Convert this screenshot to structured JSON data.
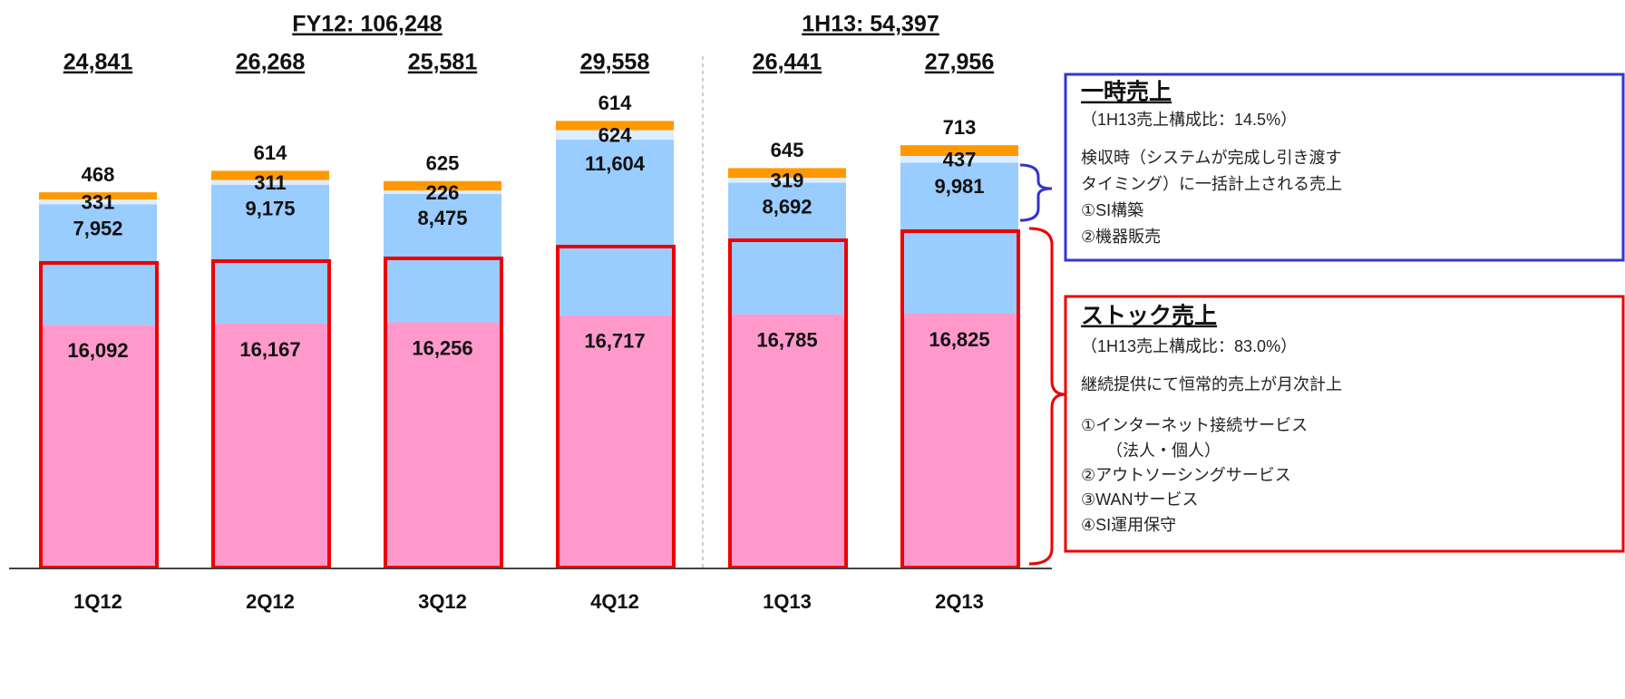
{
  "chart_data": {
    "type": "stacked_bar",
    "group_labels": [
      "FY12: 106,248",
      "1H13: 54,397"
    ],
    "categories": [
      "1Q12",
      "2Q12",
      "3Q12",
      "4Q12",
      "1Q13",
      "2Q13"
    ],
    "totals": [
      24841,
      26268,
      25581,
      29558,
      26441,
      27956
    ],
    "totals_labels": [
      "24,841",
      "26,268",
      "25,581",
      "29,558",
      "26,441",
      "27,956"
    ],
    "series": [
      {
        "color": "#ff99cc",
        "values": [
          16092,
          16167,
          16256,
          16717,
          16785,
          16825
        ],
        "value_labels": [
          "16,092",
          "16,167",
          "16,256",
          "16,717",
          "16,785",
          "16,825"
        ]
      },
      {
        "color": "#99ccff",
        "values": [
          7952,
          9175,
          8475,
          11604,
          8692,
          9981
        ],
        "value_labels": [
          "7,952",
          "9,175",
          "8,475",
          "11,604",
          "8,692",
          "9,981"
        ]
      },
      {
        "color": "#ddeeff",
        "values": [
          331,
          311,
          226,
          624,
          319,
          437
        ]
      },
      {
        "color": "#ff9900",
        "values": [
          468,
          614,
          625,
          614,
          645,
          713
        ]
      }
    ],
    "ylim": [
      0,
      30000
    ],
    "annotations": {
      "temporary": {
        "title": "一時売上",
        "lines": [
          "（1H13売上構成比：14.5%）",
          "検収時（システムが完成し引き渡す",
          "タイミング）に一括計上される売上",
          "①SI構築",
          "②機器販売"
        ]
      },
      "stock": {
        "title": "ストック売上",
        "lines": [
          "（1H13売上構成比：83.0%）",
          "継続提供にて恒常的売上が月次計上",
          "①インターネット接続サービス",
          "（法人・個人）",
          "②アウトソーシングサービス",
          "③WANサービス",
          "④SI運用保守"
        ]
      }
    }
  }
}
